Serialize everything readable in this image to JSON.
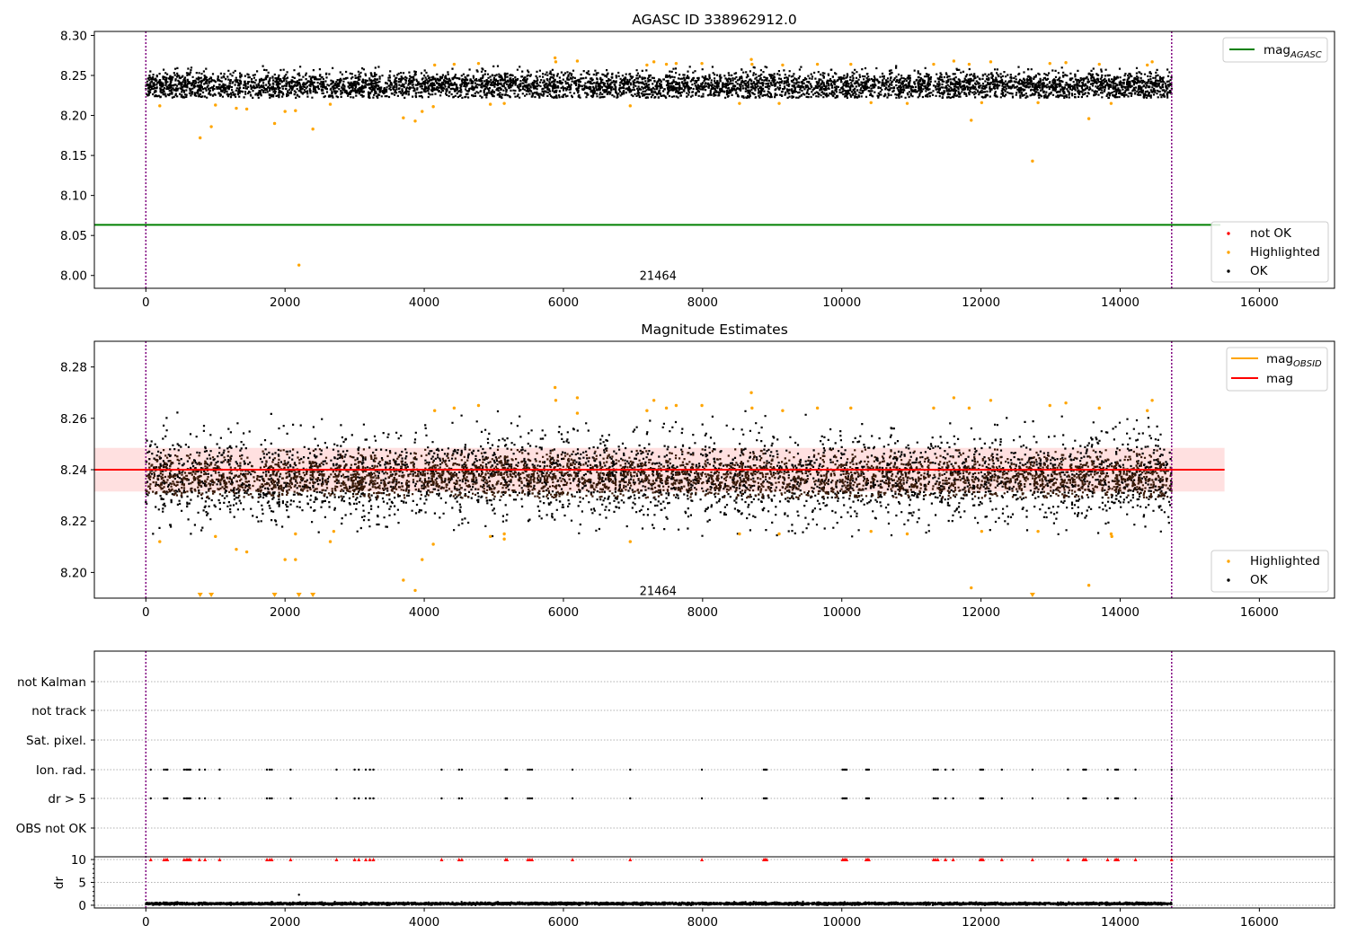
{
  "chart_data": [
    {
      "id": "mag_agasc",
      "type": "scatter",
      "title": "AGASC ID 338962912.0",
      "xlim": [
        -740,
        17080
      ],
      "ylim": [
        7.984,
        8.305
      ],
      "xticks": [
        0,
        2000,
        4000,
        6000,
        8000,
        10000,
        12000,
        14000,
        16000
      ],
      "yticks": [
        8.0,
        8.05,
        8.1,
        8.15,
        8.2,
        8.25,
        8.3
      ],
      "ytick_labels": [
        "8.00",
        "8.05",
        "8.10",
        "8.15",
        "8.20",
        "8.25",
        "8.30"
      ],
      "vlines": [
        0,
        14740
      ],
      "obsid_label": {
        "text": "21464",
        "x": 7360,
        "y": 8.0
      },
      "mag_agasc": 8.0632,
      "ok_band": {
        "x": [
          0,
          14740
        ],
        "center": 8.237,
        "spread": 0.0085,
        "min": 8.222,
        "max": 8.262
      },
      "highlighted": [
        [
          200,
          8.212
        ],
        [
          780,
          8.172
        ],
        [
          940,
          8.186
        ],
        [
          1000,
          8.213
        ],
        [
          1300,
          8.209
        ],
        [
          1450,
          8.208
        ],
        [
          1850,
          8.19
        ],
        [
          2000,
          8.205
        ],
        [
          2150,
          8.206
        ],
        [
          2200,
          8.013
        ],
        [
          2400,
          8.183
        ],
        [
          2650,
          8.214
        ],
        [
          3700,
          8.197
        ],
        [
          3870,
          8.193
        ],
        [
          3970,
          8.205
        ],
        [
          4130,
          8.211
        ],
        [
          4150,
          8.263
        ],
        [
          4430,
          8.264
        ],
        [
          4780,
          8.265
        ],
        [
          4950,
          8.214
        ],
        [
          5150,
          8.215
        ],
        [
          5880,
          8.272
        ],
        [
          5890,
          8.267
        ],
        [
          6200,
          8.268
        ],
        [
          6960,
          8.212
        ],
        [
          7200,
          8.263
        ],
        [
          7300,
          8.267
        ],
        [
          7480,
          8.264
        ],
        [
          7620,
          8.265
        ],
        [
          7990,
          8.265
        ],
        [
          8530,
          8.215
        ],
        [
          8700,
          8.27
        ],
        [
          8710,
          8.264
        ],
        [
          9100,
          8.215
        ],
        [
          9150,
          8.263
        ],
        [
          9650,
          8.264
        ],
        [
          10130,
          8.264
        ],
        [
          10420,
          8.216
        ],
        [
          10940,
          8.215
        ],
        [
          11320,
          8.264
        ],
        [
          11610,
          8.268
        ],
        [
          11830,
          8.264
        ],
        [
          11860,
          8.194
        ],
        [
          12010,
          8.216
        ],
        [
          12140,
          8.267
        ],
        [
          12740,
          8.143
        ],
        [
          12820,
          8.216
        ],
        [
          12990,
          8.265
        ],
        [
          13220,
          8.266
        ],
        [
          13550,
          8.196
        ],
        [
          13700,
          8.264
        ],
        [
          13870,
          8.215
        ],
        [
          14390,
          8.263
        ],
        [
          14460,
          8.267
        ]
      ],
      "legend_top": [
        {
          "label": "mag",
          "sub": "AGASC",
          "color": "#008000",
          "kind": "line"
        }
      ],
      "legend_bottom": [
        {
          "label": "not OK",
          "color": "#ff0000",
          "kind": "dot"
        },
        {
          "label": "Highlighted",
          "color": "#ffa500",
          "kind": "dot"
        },
        {
          "label": "OK",
          "color": "#000000",
          "kind": "dot"
        }
      ]
    },
    {
      "id": "mag_estimates",
      "type": "scatter",
      "title": "Magnitude Estimates",
      "xlim": [
        -740,
        17080
      ],
      "ylim": [
        8.19,
        8.29
      ],
      "xticks": [
        0,
        2000,
        4000,
        6000,
        8000,
        10000,
        12000,
        14000,
        16000
      ],
      "yticks": [
        8.2,
        8.22,
        8.24,
        8.26,
        8.28
      ],
      "ytick_labels": [
        "8.20",
        "8.22",
        "8.24",
        "8.26",
        "8.28"
      ],
      "vlines": [
        0,
        14740
      ],
      "obsid_label": {
        "text": "21464",
        "x": 7360,
        "y": 8.193
      },
      "mag": 8.24,
      "mag_band": [
        8.2315,
        8.2485
      ],
      "mag_line_x": [
        -740,
        15500
      ],
      "ok_band": {
        "x": [
          0,
          14740
        ],
        "center": 8.237,
        "spread": 0.0085,
        "min": 8.214,
        "max": 8.263
      },
      "highlighted": [
        [
          200,
          8.212
        ],
        [
          1000,
          8.214
        ],
        [
          1300,
          8.209
        ],
        [
          1450,
          8.208
        ],
        [
          2000,
          8.205
        ],
        [
          2150,
          8.205
        ],
        [
          2150,
          8.215
        ],
        [
          2650,
          8.212
        ],
        [
          2700,
          8.216
        ],
        [
          3700,
          8.197
        ],
        [
          3870,
          8.193
        ],
        [
          3970,
          8.205
        ],
        [
          4130,
          8.211
        ],
        [
          4150,
          8.263
        ],
        [
          4430,
          8.264
        ],
        [
          4780,
          8.265
        ],
        [
          4950,
          8.214
        ],
        [
          5150,
          8.215
        ],
        [
          5150,
          8.213
        ],
        [
          5880,
          8.272
        ],
        [
          5890,
          8.267
        ],
        [
          6200,
          8.268
        ],
        [
          6200,
          8.262
        ],
        [
          6960,
          8.212
        ],
        [
          7200,
          8.263
        ],
        [
          7300,
          8.267
        ],
        [
          7480,
          8.264
        ],
        [
          7620,
          8.265
        ],
        [
          7990,
          8.265
        ],
        [
          8530,
          8.215
        ],
        [
          8700,
          8.27
        ],
        [
          8710,
          8.264
        ],
        [
          9100,
          8.215
        ],
        [
          9150,
          8.263
        ],
        [
          9650,
          8.264
        ],
        [
          10130,
          8.264
        ],
        [
          10420,
          8.216
        ],
        [
          10940,
          8.215
        ],
        [
          11320,
          8.264
        ],
        [
          11610,
          8.268
        ],
        [
          11830,
          8.264
        ],
        [
          11860,
          8.194
        ],
        [
          12010,
          8.216
        ],
        [
          12140,
          8.267
        ],
        [
          12820,
          8.216
        ],
        [
          12990,
          8.265
        ],
        [
          13220,
          8.266
        ],
        [
          13550,
          8.195
        ],
        [
          13700,
          8.264
        ],
        [
          13870,
          8.215
        ],
        [
          13880,
          8.214
        ],
        [
          14390,
          8.263
        ],
        [
          14460,
          8.267
        ]
      ],
      "offscale_low": [
        780,
        940,
        1850,
        2200,
        2400,
        12740
      ],
      "legend_top": [
        {
          "label": "mag",
          "sub": "OBSID",
          "color": "#ffa500",
          "kind": "line"
        },
        {
          "label": "mag",
          "sub": "",
          "color": "#ff0000",
          "kind": "line"
        }
      ],
      "legend_bottom": [
        {
          "label": "Highlighted",
          "color": "#ffa500",
          "kind": "dot"
        },
        {
          "label": "OK",
          "color": "#000000",
          "kind": "dot"
        }
      ]
    },
    {
      "id": "flags",
      "type": "scatter",
      "xlim": [
        -740,
        17080
      ],
      "xticks": [
        0,
        2000,
        4000,
        6000,
        8000,
        10000,
        12000,
        14000,
        16000
      ],
      "vlines": [
        0,
        14740
      ],
      "rows": [
        "not Kalman",
        "not track",
        "Sat. pixel.",
        "Ion. rad.",
        "dr > 5",
        "OBS not OK"
      ],
      "flag_rows": [
        "Ion. rad.",
        "dr > 5"
      ],
      "event_times": [
        70,
        260,
        290,
        310,
        550,
        580,
        600,
        620,
        640,
        770,
        850,
        1060,
        1740,
        1780,
        1810,
        2080,
        2740,
        3000,
        3060,
        3160,
        3220,
        3270,
        4250,
        4500,
        4540,
        5170,
        5190,
        5490,
        5520,
        5550,
        6130,
        6960,
        7990,
        8880,
        8900,
        8920,
        10010,
        10030,
        10050,
        10070,
        10350,
        10370,
        10390,
        11320,
        11350,
        11380,
        11490,
        11600,
        11990,
        12010,
        12030,
        12300,
        12740,
        13250,
        13470,
        13490,
        13510,
        13820,
        13930,
        13950,
        13970,
        14220,
        14740
      ],
      "dr_ylim": [
        -0.6,
        10.6
      ],
      "dr_yticks": [
        0,
        5,
        10
      ],
      "dr_ylabel": "dr",
      "dr_cap": 10,
      "dr_typical": 0.35,
      "dr_outliers": [
        [
          2200,
          2.3
        ]
      ]
    }
  ]
}
